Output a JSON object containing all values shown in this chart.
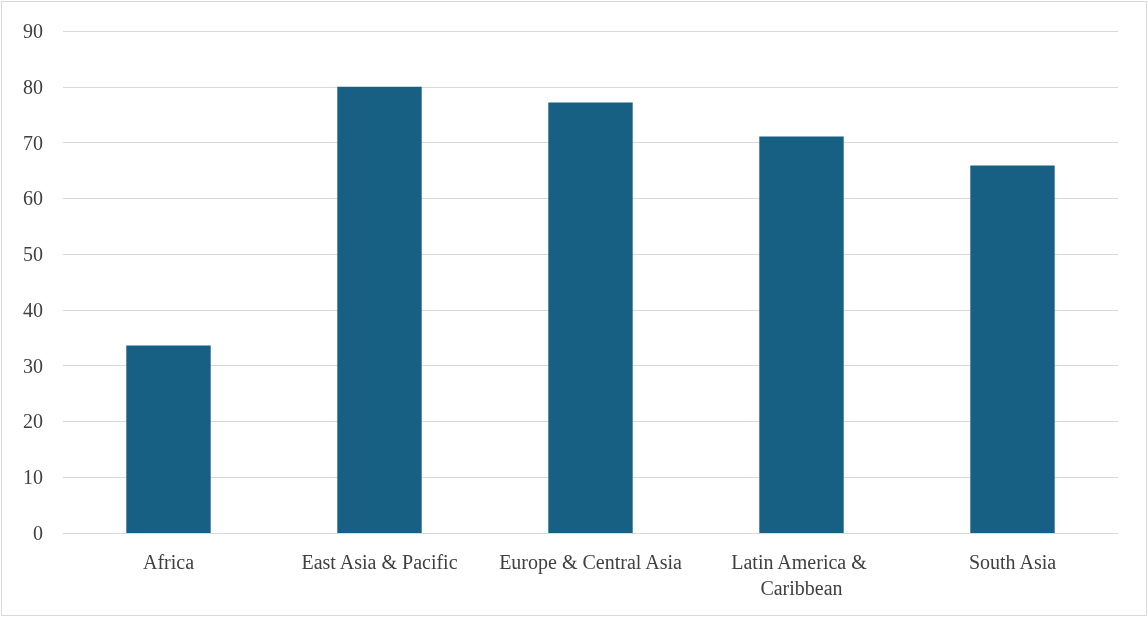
{
  "chart_data": {
    "type": "bar",
    "categories": [
      "Africa",
      "East Asia & Pacific",
      "Europe & Central Asia",
      "Latin America & Caribbean",
      "South Asia"
    ],
    "values": [
      33.6,
      80,
      77.2,
      71.1,
      65.9
    ],
    "color": "#175f83",
    "ylim": [
      0,
      90
    ],
    "yticks": [
      0,
      10,
      20,
      30,
      40,
      50,
      60,
      70,
      80,
      90
    ],
    "grid": "y"
  }
}
